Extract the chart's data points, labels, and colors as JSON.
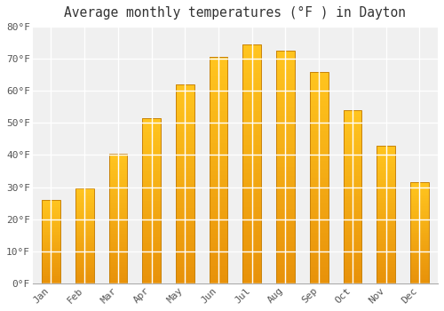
{
  "title": "Average monthly temperatures (°F ) in Dayton",
  "months": [
    "Jan",
    "Feb",
    "Mar",
    "Apr",
    "May",
    "Jun",
    "Jul",
    "Aug",
    "Sep",
    "Oct",
    "Nov",
    "Dec"
  ],
  "values": [
    26,
    29.5,
    40.5,
    51.5,
    62,
    70.5,
    74.5,
    72.5,
    66,
    54,
    43,
    31.5
  ],
  "bar_color_light": "#FFB800",
  "bar_color_dark": "#E8920A",
  "bar_edge_color": "#C8820A",
  "background_color": "#ffffff",
  "plot_bg_color": "#f0f0f0",
  "grid_color": "#ffffff",
  "ylim": [
    0,
    80
  ],
  "yticks": [
    0,
    10,
    20,
    30,
    40,
    50,
    60,
    70,
    80
  ],
  "title_fontsize": 10.5,
  "tick_fontsize": 8,
  "font_family": "monospace"
}
